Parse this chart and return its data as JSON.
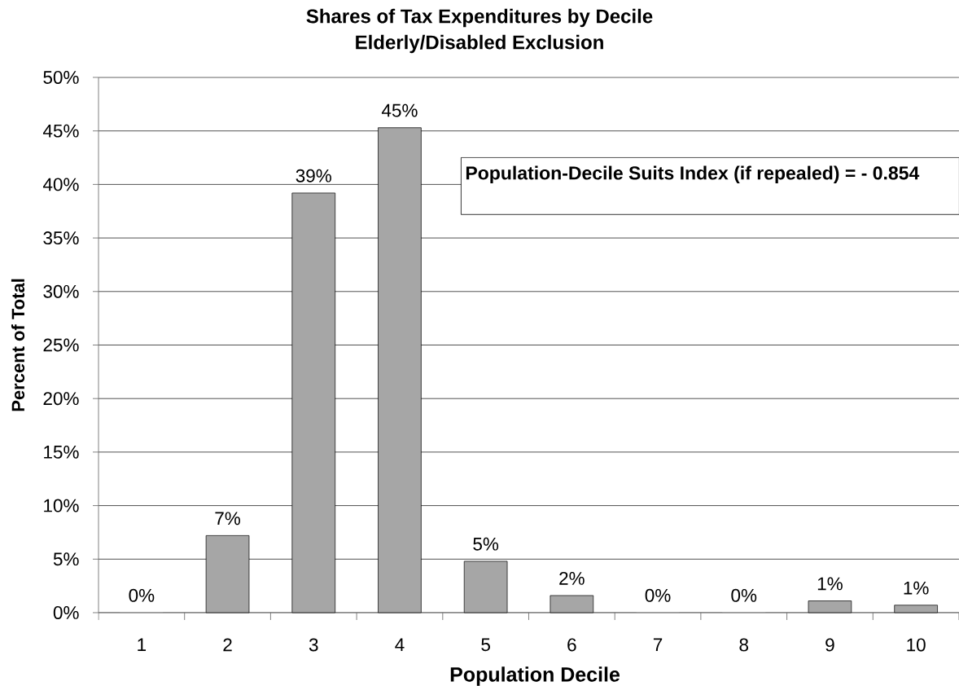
{
  "chart_data": {
    "type": "bar",
    "title": "Shares of Tax Expenditures by Decile",
    "subtitle": "Elderly/Disabled Exclusion",
    "xlabel": "Population Decile",
    "ylabel": "Percent of Total",
    "categories": [
      "1",
      "2",
      "3",
      "4",
      "5",
      "6",
      "7",
      "8",
      "9",
      "10"
    ],
    "values": [
      0,
      7.2,
      39.2,
      45.3,
      4.8,
      1.6,
      0,
      0,
      1.1,
      0.7
    ],
    "value_labels": [
      "0%",
      "7%",
      "39%",
      "45%",
      "5%",
      "2%",
      "0%",
      "0%",
      "1%",
      "1%"
    ],
    "color": "#a6a6a6",
    "ylim": [
      0,
      50
    ],
    "yticks": [
      {
        "value": 0,
        "label": "0%"
      },
      {
        "value": 5,
        "label": "5%"
      },
      {
        "value": 10,
        "label": "10%"
      },
      {
        "value": 15,
        "label": "15%"
      },
      {
        "value": 20,
        "label": "20%"
      },
      {
        "value": 25,
        "label": "25%"
      },
      {
        "value": 30,
        "label": "30%"
      },
      {
        "value": 35,
        "label": "35%"
      },
      {
        "value": 40,
        "label": "40%"
      },
      {
        "value": 45,
        "label": "45%"
      },
      {
        "value": 50,
        "label": "50%"
      }
    ],
    "grid": "y",
    "annotations": [
      "Population-Decile Suits Index (if repealed) = - 0.854"
    ]
  }
}
